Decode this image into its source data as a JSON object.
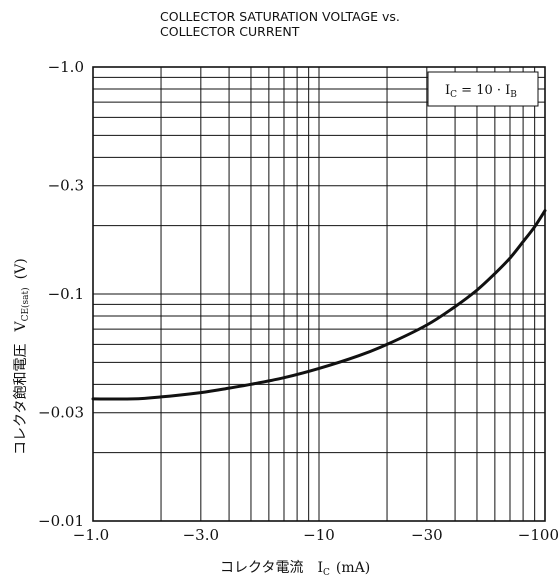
{
  "chart_data": {
    "type": "line",
    "title_lines": [
      "COLLECTOR SATURATION VOLTAGE vs.",
      "COLLECTOR CURRENT"
    ],
    "xlabel": "コレクタ電流",
    "xlabel_symbol": {
      "main": "I",
      "sub": "C",
      "unit": "(mA)"
    },
    "ylabel": "コレクタ飽和電圧",
    "ylabel_symbol": {
      "main": "V",
      "sub": "CE(sat)",
      "unit": "(V)"
    },
    "x_scale": "log",
    "y_scale": "log",
    "xlim": [
      -1.0,
      -100
    ],
    "ylim": [
      -0.01,
      -1.0
    ],
    "x_ticks": [
      -1.0,
      -3.0,
      -10,
      -30,
      -100
    ],
    "x_tick_labels": [
      "−1.0",
      "−3.0",
      "−10",
      "−30",
      "−100"
    ],
    "y_ticks": [
      -1.0,
      -0.3,
      -0.1,
      -0.03,
      -0.01
    ],
    "y_tick_labels": [
      "−1.0",
      "−0.3",
      "−0.1",
      "−0.03",
      "−0.01"
    ],
    "grid": true,
    "legend": {
      "text_main": "I",
      "text_sub": "C",
      "text_rest": " = 10 · I",
      "text_sub2": "B",
      "placement": "top-right"
    },
    "series": [
      {
        "x": [
          -1.0,
          -1.5,
          -2.0,
          -3.0,
          -4.0,
          -5.0,
          -7.0,
          -10,
          -15,
          -20,
          -30,
          -40,
          -50,
          -60,
          -70,
          -80,
          -90,
          -100
        ],
        "values": [
          -0.0345,
          -0.0345,
          -0.0352,
          -0.0368,
          -0.0385,
          -0.04,
          -0.0428,
          -0.047,
          -0.0535,
          -0.06,
          -0.073,
          -0.088,
          -0.104,
          -0.123,
          -0.144,
          -0.17,
          -0.198,
          -0.233
        ]
      }
    ]
  }
}
